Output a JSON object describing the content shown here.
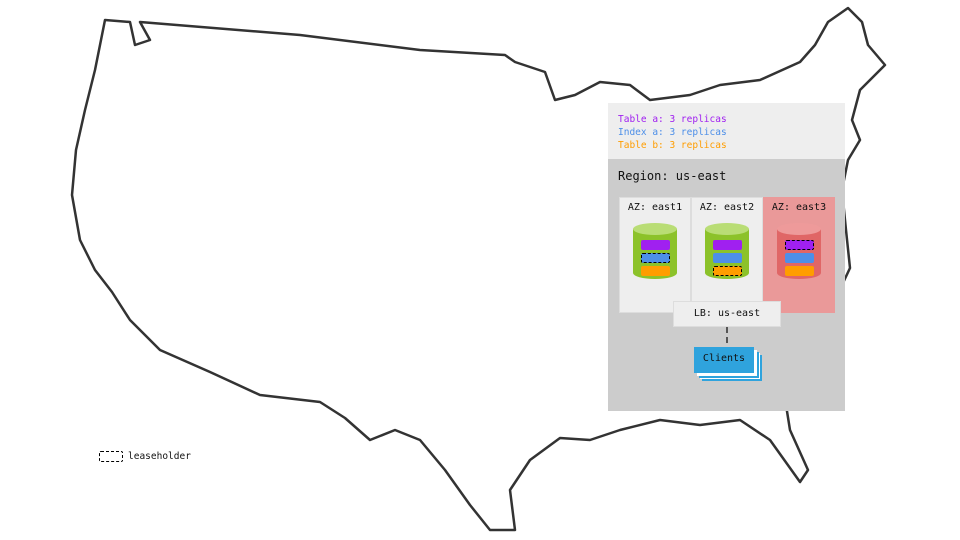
{
  "legend": {
    "table_a": {
      "text": "Table a: 3 replicas",
      "color": "#a020f0"
    },
    "index_a": {
      "text": "Index a: 3 replicas",
      "color": "#4d8fe8"
    },
    "table_b": {
      "text": "Table b: 3 replicas",
      "color": "#ff9d00"
    },
    "leaseholder": "leaseholder"
  },
  "region": {
    "label": "Region: us-east",
    "zones": [
      {
        "label": "AZ: east1",
        "status": "healthy",
        "leaseholder": "index_a"
      },
      {
        "label": "AZ: east2",
        "status": "healthy",
        "leaseholder": "table_b"
      },
      {
        "label": "AZ: east3",
        "status": "failed",
        "leaseholder": "table_a"
      }
    ],
    "load_balancer": "LB: us-east",
    "clients": "Clients"
  },
  "colors": {
    "healthy_node": "#8cc22a",
    "failed_node": "#e06666",
    "failed_zone": "#ea9999",
    "clients": "#2fa3dd"
  }
}
